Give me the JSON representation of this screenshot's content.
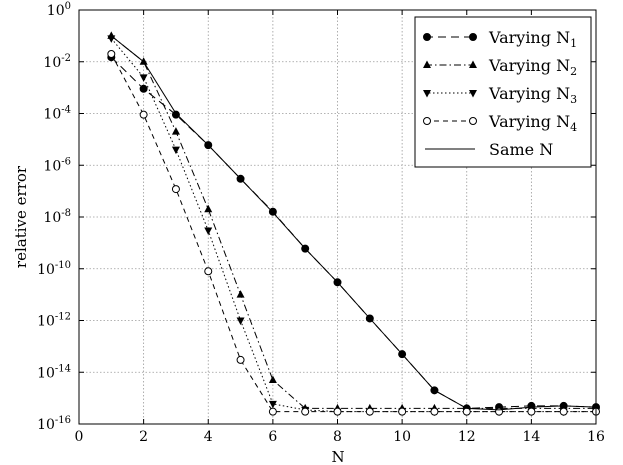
{
  "chart_data": {
    "type": "line",
    "title": "",
    "xlabel": "N",
    "ylabel": "relative error",
    "xlim": [
      0,
      16
    ],
    "ylim_log10": [
      -16,
      0
    ],
    "y_scale": "log",
    "grid": true,
    "legend_position": "top-right",
    "x_ticks": [
      "0",
      "2",
      "4",
      "6",
      "8",
      "10",
      "12",
      "14",
      "16"
    ],
    "y_ticks": [
      {
        "base": "10",
        "exp": "0"
      },
      {
        "base": "10",
        "exp": "-2"
      },
      {
        "base": "10",
        "exp": "-4"
      },
      {
        "base": "10",
        "exp": "-6"
      },
      {
        "base": "10",
        "exp": "-8"
      },
      {
        "base": "10",
        "exp": "-10"
      },
      {
        "base": "10",
        "exp": "-12"
      },
      {
        "base": "10",
        "exp": "-14"
      },
      {
        "base": "10",
        "exp": "-16"
      }
    ],
    "series": [
      {
        "name": "Varying N",
        "subscript": "1",
        "marker": "circle-filled",
        "dash": "8 5",
        "color": "#000000",
        "x": [
          1,
          2,
          3,
          4,
          5,
          6,
          7,
          8,
          9,
          10,
          11,
          12,
          13,
          14,
          15,
          16
        ],
        "y": [
          0.015,
          0.0009,
          9e-05,
          6e-06,
          3e-07,
          1.6e-08,
          6e-10,
          3e-11,
          1.2e-12,
          5e-14,
          2e-15,
          4e-16,
          4.5e-16,
          5e-16,
          5e-16,
          4.5e-16
        ]
      },
      {
        "name": "Varying N",
        "subscript": "2",
        "marker": "triangle-up-filled",
        "dash": "7 3 1.5 3",
        "color": "#000000",
        "x": [
          1,
          2,
          3,
          4,
          5,
          6,
          7,
          8,
          9,
          10,
          11,
          12,
          13,
          14,
          15,
          16
        ],
        "y": [
          0.1,
          0.01,
          2e-05,
          2e-08,
          1e-11,
          5e-15,
          4e-16,
          4e-16,
          4e-16,
          4e-16,
          4e-16,
          4e-16,
          4e-16,
          4e-16,
          4e-16,
          4e-16
        ]
      },
      {
        "name": "Varying N",
        "subscript": "3",
        "marker": "triangle-down-filled",
        "dash": "1.5 2.5",
        "color": "#000000",
        "x": [
          1,
          2,
          3,
          4,
          5,
          6,
          7,
          8,
          9,
          10,
          11,
          12,
          13,
          14,
          15,
          16
        ],
        "y": [
          0.08,
          0.0025,
          4e-06,
          3e-09,
          1e-12,
          6e-16,
          3.5e-16,
          3e-16,
          3e-16,
          3e-16,
          3e-16,
          3e-16,
          3e-16,
          3e-16,
          3e-16,
          3e-16
        ]
      },
      {
        "name": "Varying N",
        "subscript": "4",
        "marker": "circle-open",
        "dash": "5 4",
        "color": "#000000",
        "x": [
          1,
          2,
          3,
          4,
          5,
          6,
          7,
          8,
          9,
          10,
          11,
          12,
          13,
          14,
          15,
          16
        ],
        "y": [
          0.02,
          9e-05,
          1.2e-07,
          8e-11,
          3e-14,
          3e-16,
          3e-16,
          3e-16,
          3e-16,
          3e-16,
          3e-16,
          3e-16,
          3e-16,
          3e-16,
          3e-16,
          3e-16
        ]
      },
      {
        "name": "Same N",
        "subscript": "",
        "marker": "none",
        "dash": "",
        "color": "#000000",
        "x": [
          1,
          2,
          3,
          4,
          5,
          6,
          7,
          8,
          9,
          10,
          11,
          12,
          13,
          14,
          15,
          16
        ],
        "y": [
          0.1,
          0.01,
          0.0001,
          6e-06,
          3e-07,
          1.5e-08,
          6e-10,
          3e-11,
          1.2e-12,
          5e-14,
          2e-15,
          4e-16,
          3.5e-16,
          4.5e-16,
          5e-16,
          4.5e-16
        ]
      }
    ]
  }
}
